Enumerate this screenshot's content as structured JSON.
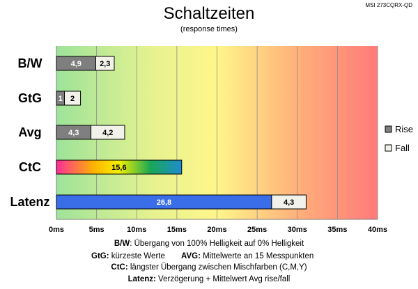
{
  "chart_data": {
    "type": "bar",
    "orientation": "horizontal",
    "stacked": true,
    "title": "Schaltzeiten",
    "subtitle": "(response times)",
    "model": "MSI 273CQRX-QD",
    "categories": [
      "B/W",
      "GtG",
      "Avg",
      "CtC",
      "Latenz"
    ],
    "series": [
      {
        "name": "Rise",
        "values": [
          4.9,
          1,
          4.3,
          15.6,
          26.8
        ],
        "labels": [
          "4,9",
          "1",
          "4,3",
          "15,6",
          "26,8"
        ]
      },
      {
        "name": "Fall",
        "values": [
          2.3,
          2,
          4.2,
          null,
          4.3
        ],
        "labels": [
          "2,3",
          "2",
          "4,2",
          "",
          "4,3"
        ]
      }
    ],
    "xlim": [
      0,
      40
    ],
    "xticks": [
      0,
      5,
      10,
      15,
      20,
      25,
      30,
      35,
      40
    ],
    "xtick_labels": [
      "0ms",
      "5ms",
      "10ms",
      "15ms",
      "20ms",
      "25ms",
      "30ms",
      "35ms",
      "40ms"
    ],
    "legend": [
      "Rise",
      "Fall"
    ],
    "legend_position": "right",
    "grid": true,
    "colors": {
      "rise": "#7f7f7f",
      "fall": "#f2f2ea",
      "latenz_rise": "#3a6ee8",
      "bar_border": "#000000",
      "background_gradient": [
        "#9ee39a",
        "#e6f28f",
        "#fff68a",
        "#ffb07a",
        "#ff7a7a"
      ],
      "ctc_gradient": [
        "#ff2d9a",
        "#ffb400",
        "#f4f000",
        "#19a855",
        "#1e8ccf"
      ]
    }
  },
  "footnotes": {
    "line1": {
      "bold": "B/W",
      "text": ":  Übergang von 100% Helligkeit auf 0% Helligkeit"
    },
    "line2a": {
      "bold": "GtG:",
      "text": " kürzeste  Werte"
    },
    "line2b": {
      "bold": "AVG:",
      "text": " Mittelwerte  an 15 Messpunkten"
    },
    "line3": {
      "bold": "CtC:",
      "text": " längster Übergang  zwischen Mischfarben  (C,M,Y)"
    },
    "line4": {
      "bold": "Latenz:",
      "text": " Verzögerung  + Mittelwert Avg rise/fall"
    }
  }
}
